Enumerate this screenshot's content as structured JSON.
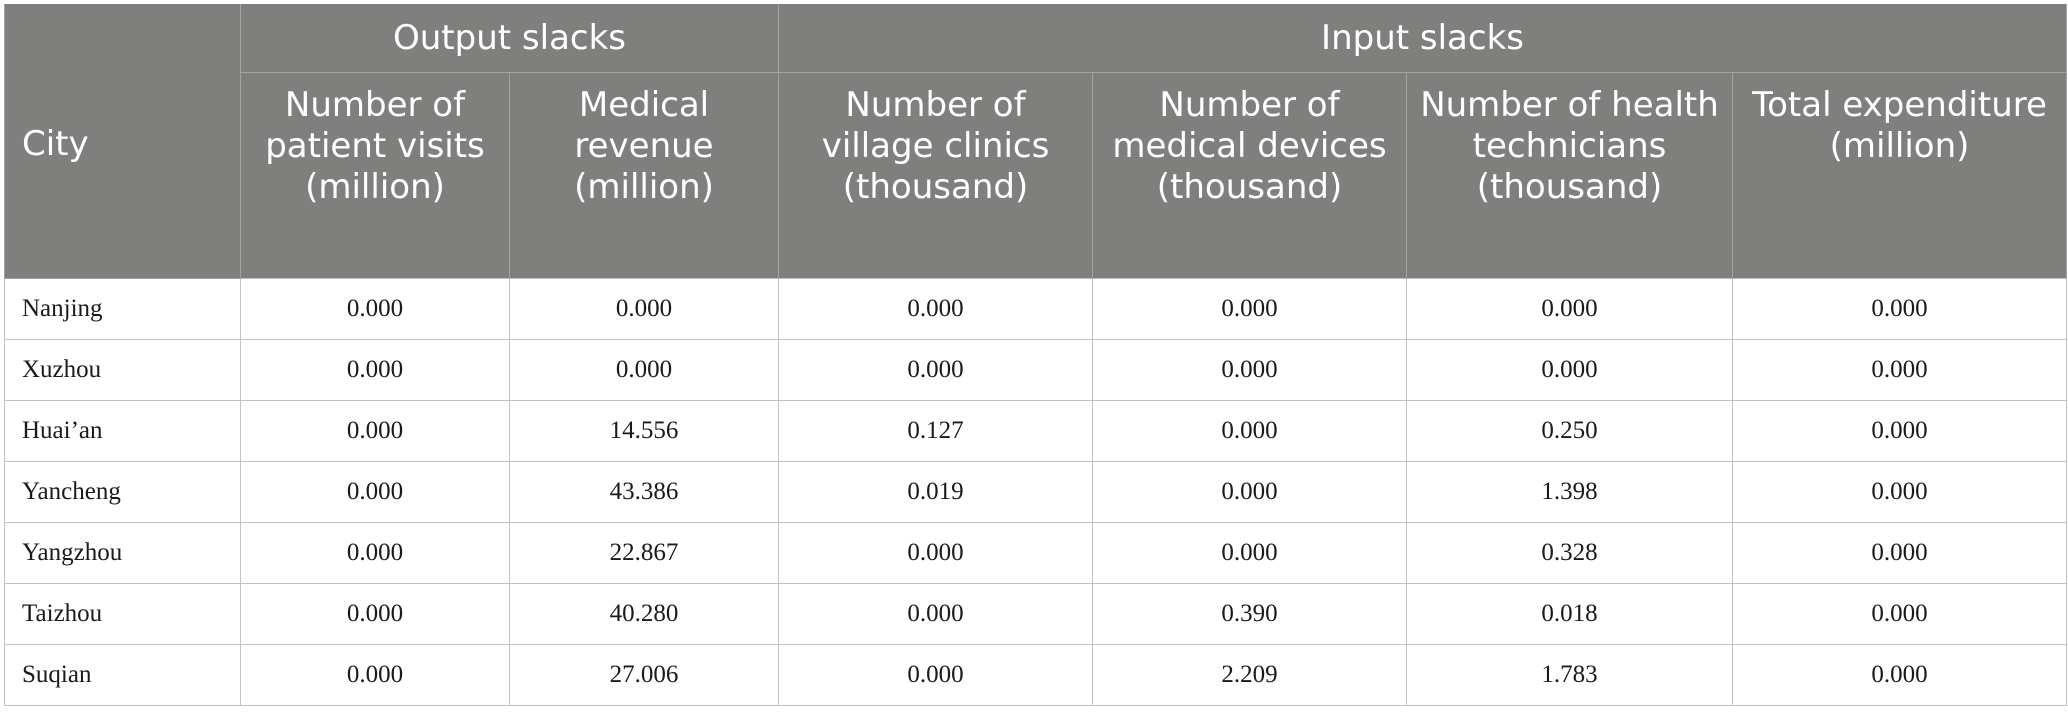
{
  "table": {
    "header": {
      "city": "City",
      "group_output": "Output slacks",
      "group_input": "Input slacks",
      "columns": [
        "Number of patient visits (million)",
        "Medical revenue (million)",
        "Number of village clinics (thousand)",
        "Number of medical devices (thousand)",
        "Number of health technicians (thousand)",
        "Total expenditure (million)"
      ]
    },
    "rows": [
      {
        "city": "Nanjing",
        "values": [
          "0.000",
          "0.000",
          "0.000",
          "0.000",
          "0.000",
          "0.000"
        ]
      },
      {
        "city": "Xuzhou",
        "values": [
          "0.000",
          "0.000",
          "0.000",
          "0.000",
          "0.000",
          "0.000"
        ]
      },
      {
        "city": "Huai’an",
        "values": [
          "0.000",
          "14.556",
          "0.127",
          "0.000",
          "0.250",
          "0.000"
        ]
      },
      {
        "city": "Yancheng",
        "values": [
          "0.000",
          "43.386",
          "0.019",
          "0.000",
          "1.398",
          "0.000"
        ]
      },
      {
        "city": "Yangzhou",
        "values": [
          "0.000",
          "22.867",
          "0.000",
          "0.000",
          "0.328",
          "0.000"
        ]
      },
      {
        "city": "Taizhou",
        "values": [
          "0.000",
          "40.280",
          "0.000",
          "0.390",
          "0.018",
          "0.000"
        ]
      },
      {
        "city": "Suqian",
        "values": [
          "0.000",
          "27.006",
          "0.000",
          "2.209",
          "1.783",
          "0.000"
        ]
      }
    ]
  }
}
